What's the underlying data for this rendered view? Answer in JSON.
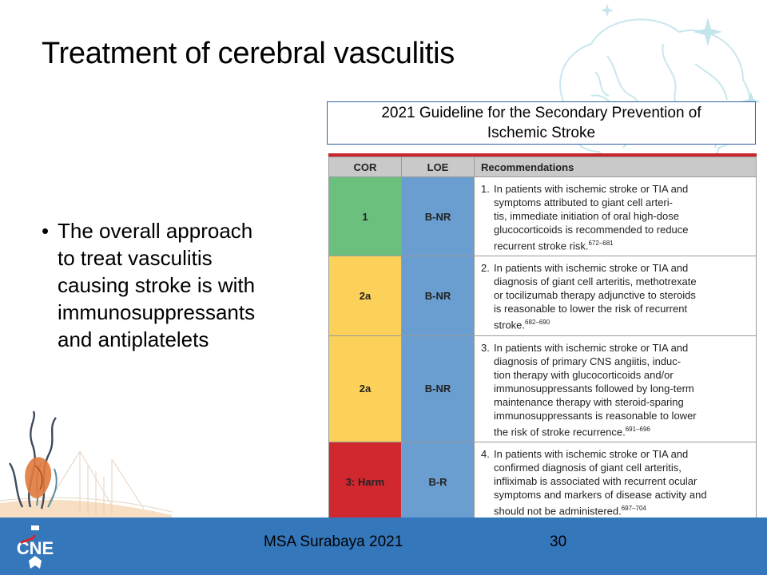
{
  "slide": {
    "title": "Treatment of cerebral vasculitis"
  },
  "bullet": {
    "lines": [
      "The overall approach",
      "to treat vasculitis",
      "causing stroke is with",
      "immunosuppressants",
      "and antiplatelets"
    ]
  },
  "guideline": {
    "title_line1": "2021 Guideline for the Secondary Prevention of",
    "title_line2": "Ischemic Stroke"
  },
  "table": {
    "headers": {
      "cor": "COR",
      "loe": "LOE",
      "rec": "Recommendations"
    },
    "rows": [
      {
        "cor": "1",
        "loe": "B-NR",
        "num": "1.",
        "cor_color": "#6cc07e",
        "lines": [
          "In patients with ischemic stroke or TIA and",
          "symptoms attributed to giant cell arteri-",
          "tis, immediate initiation of oral high-dose",
          "glucocorticoids is recommended to reduce",
          "recurrent stroke risk."
        ],
        "ref": "672–681"
      },
      {
        "cor": "2a",
        "loe": "B-NR",
        "num": "2.",
        "cor_color": "#fbd159",
        "lines": [
          "In patients with ischemic stroke or TIA and",
          "diagnosis of giant cell arteritis, methotrexate",
          "or tocilizumab therapy adjunctive to steroids",
          "is reasonable to lower the risk of recurrent",
          "stroke."
        ],
        "ref": "682–690"
      },
      {
        "cor": "2a",
        "loe": "B-NR",
        "num": "3.",
        "cor_color": "#fbd159",
        "lines": [
          "In patients with ischemic stroke or TIA and",
          "diagnosis of primary CNS angiitis, induc-",
          "tion therapy with glucocorticoids and/or",
          "immunosuppressants followed by long-term",
          "maintenance therapy with steroid-sparing",
          "immunosuppressants is reasonable to lower",
          "the risk of stroke recurrence."
        ],
        "ref": "691–696"
      },
      {
        "cor": "3: Harm",
        "loe": "B-R",
        "num": "4.",
        "cor_color": "#d0282e",
        "lines": [
          "In patients with ischemic stroke or TIA and",
          "confirmed diagnosis of giant cell arteritis,",
          "infliximab is associated with recurrent ocular",
          "symptoms and markers of disease activity and",
          "should not be administered."
        ],
        "ref": "697–704"
      }
    ]
  },
  "footer": {
    "event": "MSA Surabaya 2021",
    "page_number": "30",
    "logo_text": "CNE",
    "bar_color": "#3577bb"
  }
}
